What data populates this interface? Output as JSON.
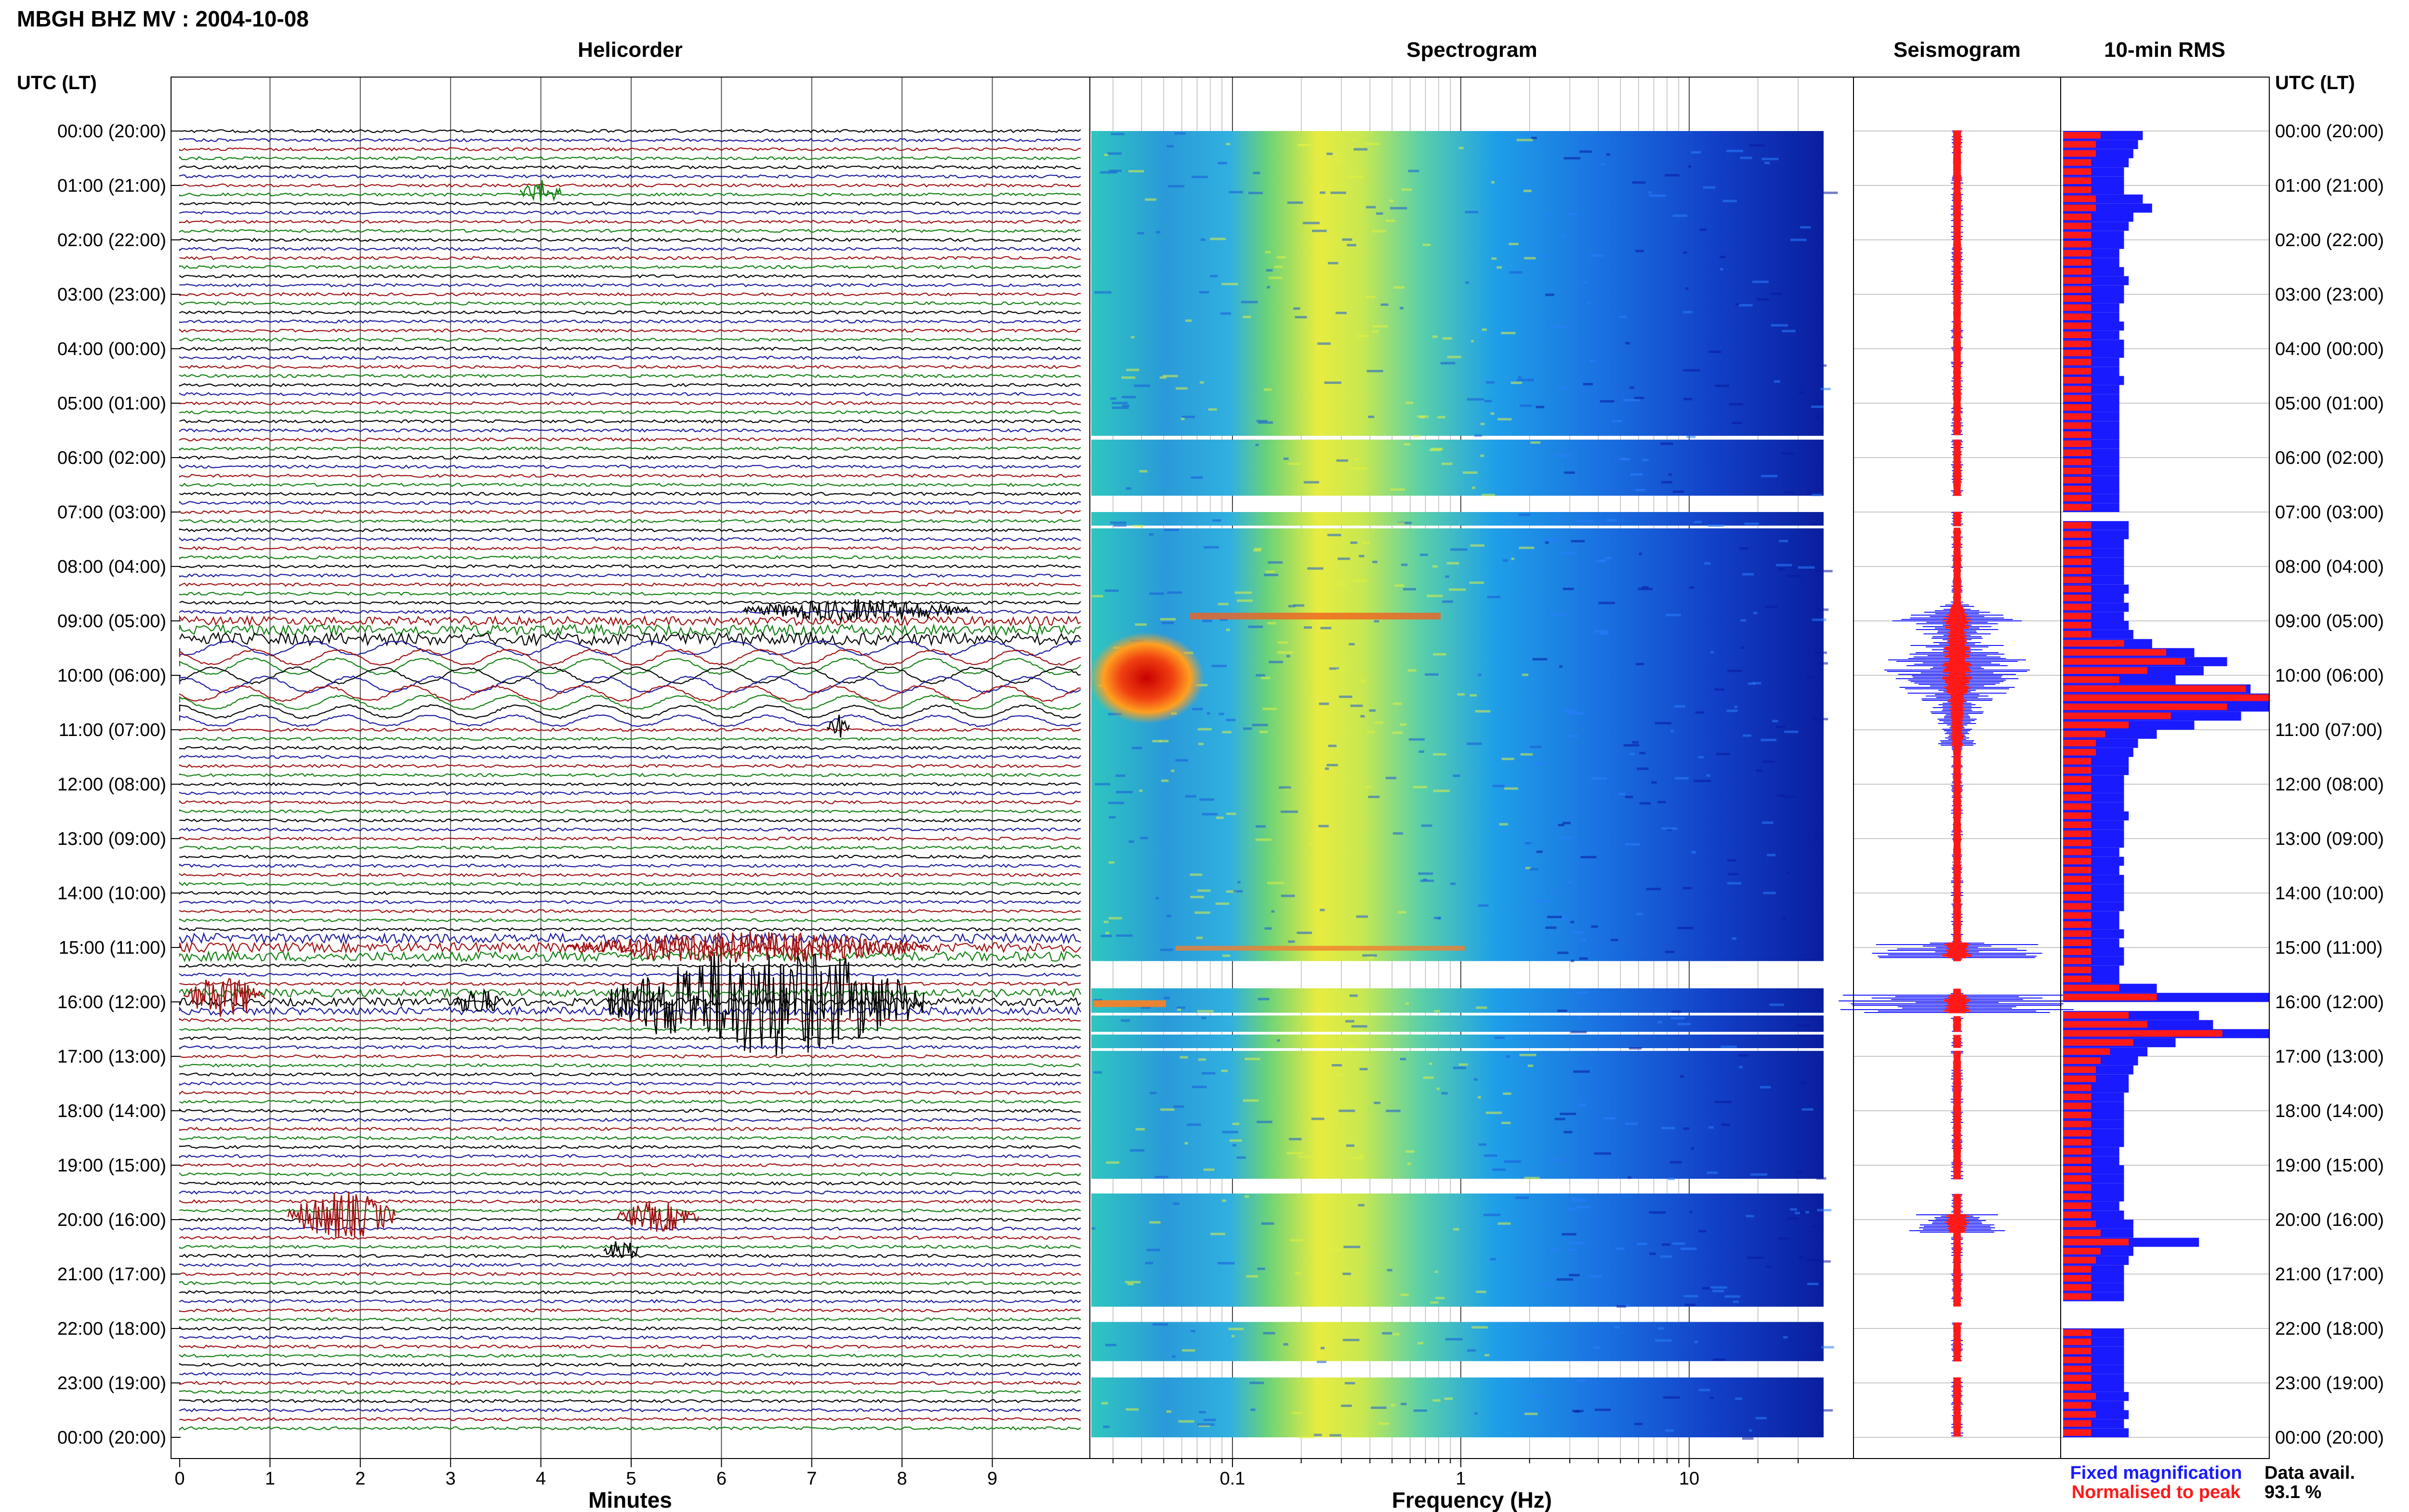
{
  "chart_data": {
    "title": "MBGH BHZ MV : 2004-10-08",
    "panels": {
      "helicorder": {
        "type": "line",
        "title": "Helicorder",
        "xlabel": "Minutes",
        "xlim": [
          0,
          10
        ],
        "xticks": [
          "0",
          "1",
          "2",
          "3",
          "4",
          "5",
          "6",
          "7",
          "8",
          "9"
        ],
        "trace_colors": [
          "#000000",
          "#1a1aa0",
          "#a01010",
          "#108010"
        ],
        "traces_per_hour": 6
      },
      "spectrogram": {
        "type": "heatmap",
        "title": "Spectrogram",
        "xlabel": "Frequency (Hz)",
        "xscale": "log",
        "xticks": [
          "0.1",
          "1",
          "10"
        ]
      },
      "seismogram": {
        "type": "line",
        "title": "Seismogram",
        "colors": {
          "fixed": "#1a1aff",
          "normalised": "#ff1a1a"
        }
      },
      "rms": {
        "type": "bar",
        "title": "10-min RMS",
        "colors": {
          "fixed": "#1a1aff",
          "normalised": "#ff1a1a"
        }
      }
    },
    "y_axis": {
      "label": "UTC (LT)",
      "ticks": [
        "00:00 (20:00)",
        "01:00 (21:00)",
        "02:00 (22:00)",
        "03:00 (23:00)",
        "04:00 (00:00)",
        "05:00 (01:00)",
        "06:00 (02:00)",
        "07:00 (03:00)",
        "08:00 (04:00)",
        "09:00 (05:00)",
        "10:00 (06:00)",
        "11:00 (07:00)",
        "12:00 (08:00)",
        "13:00 (09:00)",
        "14:00 (10:00)",
        "15:00 (11:00)",
        "16:00 (12:00)",
        "17:00 (13:00)",
        "18:00 (14:00)",
        "19:00 (15:00)",
        "20:00 (16:00)",
        "21:00 (17:00)",
        "22:00 (18:00)",
        "23:00 (19:00)",
        "00:00 (20:00)"
      ]
    },
    "rms_fixed": [
      1.7,
      1.6,
      1.5,
      1.4,
      1.3,
      1.3,
      1.3,
      1.7,
      1.9,
      1.5,
      1.4,
      1.3,
      1.3,
      1.2,
      1.2,
      1.3,
      1.4,
      1.3,
      1.3,
      1.2,
      1.2,
      1.3,
      1.2,
      1.3,
      1.3,
      1.2,
      1.2,
      1.3,
      1.2,
      1.2,
      1.2,
      1.2,
      1.2,
      1.2,
      1.2,
      1.2,
      1.2,
      1.2,
      1.2,
      1.2,
      1.2,
      1.2,
      0,
      1.4,
      1.4,
      1.3,
      1.3,
      1.3,
      1.3,
      1.3,
      1.4,
      1.3,
      1.4,
      1.3,
      1.4,
      1.5,
      1.9,
      2.8,
      3.5,
      3.0,
      2.4,
      4.0,
      4.4,
      4.4,
      3.8,
      2.8,
      2.0,
      1.6,
      1.5,
      1.4,
      1.4,
      1.3,
      1.3,
      1.3,
      1.3,
      1.4,
      1.3,
      1.3,
      1.3,
      1.2,
      1.3,
      1.2,
      1.3,
      1.3,
      1.3,
      1.3,
      1.2,
      1.2,
      1.3,
      1.2,
      1.3,
      1.3,
      1.2,
      1.2,
      2.0,
      4.4,
      0,
      2.9,
      3.2,
      4.4,
      2.4,
      1.8,
      1.6,
      1.5,
      1.4,
      1.4,
      1.3,
      1.3,
      1.3,
      1.3,
      1.3,
      1.3,
      1.2,
      1.2,
      1.3,
      1.3,
      1.3,
      1.3,
      1.2,
      1.3,
      1.5,
      1.5,
      2.9,
      1.5,
      1.4,
      1.3,
      1.3,
      1.3,
      1.3,
      0,
      0,
      0,
      1.3,
      1.3,
      1.3,
      1.3,
      1.3,
      1.3,
      1.3,
      1.4,
      1.3,
      1.4,
      1.3,
      1.4
    ],
    "rms_normalised": [
      0.8,
      0.7,
      0.7,
      0.6,
      0.6,
      0.6,
      0.6,
      0.7,
      0.7,
      0.6,
      0.6,
      0.6,
      0.6,
      0.6,
      0.6,
      0.6,
      0.6,
      0.6,
      0.6,
      0.6,
      0.6,
      0.6,
      0.6,
      0.6,
      0.6,
      0.6,
      0.6,
      0.6,
      0.6,
      0.6,
      0.6,
      0.6,
      0.6,
      0.6,
      0.6,
      0.6,
      0.6,
      0.6,
      0.6,
      0.6,
      0.6,
      0.6,
      0,
      0.6,
      0.6,
      0.6,
      0.6,
      0.6,
      0.6,
      0.6,
      0.6,
      0.6,
      0.6,
      0.6,
      0.6,
      0.6,
      1.3,
      2.2,
      2.6,
      1.8,
      1.2,
      3.9,
      4.4,
      3.5,
      2.3,
      1.4,
      0.9,
      0.7,
      0.7,
      0.6,
      0.6,
      0.6,
      0.6,
      0.6,
      0.6,
      0.6,
      0.6,
      0.6,
      0.6,
      0.6,
      0.6,
      0.6,
      0.6,
      0.6,
      0.6,
      0.6,
      0.6,
      0.6,
      0.6,
      0.6,
      0.6,
      0.6,
      0.6,
      0.6,
      1.2,
      2.0,
      0,
      1.4,
      1.8,
      3.4,
      1.5,
      1.0,
      0.8,
      0.7,
      0.7,
      0.6,
      0.6,
      0.6,
      0.6,
      0.6,
      0.6,
      0.6,
      0.6,
      0.6,
      0.6,
      0.6,
      0.6,
      0.6,
      0.6,
      0.6,
      0.7,
      0.8,
      1.4,
      0.8,
      0.7,
      0.6,
      0.6,
      0.6,
      0.6,
      0,
      0,
      0,
      0.6,
      0.6,
      0.6,
      0.6,
      0.6,
      0.6,
      0.6,
      0.7,
      0.6,
      0.7,
      0.6,
      0.6
    ],
    "legend": {
      "fixed": "Fixed magnification",
      "normalised": "Normalised to peak"
    },
    "data_avail": {
      "label": "Data avail.",
      "value": "93.1 %"
    }
  }
}
